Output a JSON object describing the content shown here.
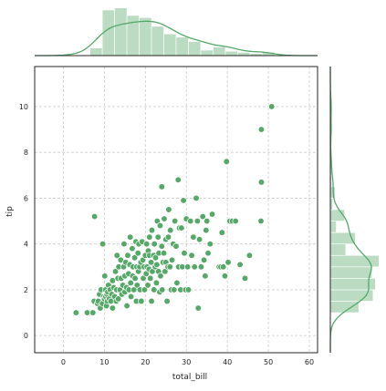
{
  "chart_data": {
    "type": "scatter",
    "kind": "jointplot",
    "xlabel": "total_bill",
    "ylabel": "tip",
    "xlim": [
      -7,
      62
    ],
    "ylim": [
      -0.75,
      11.75
    ],
    "x_ticks": [
      0,
      10,
      20,
      30,
      40,
      50,
      60
    ],
    "y_ticks": [
      0,
      2,
      4,
      6,
      8,
      10
    ],
    "grid": true,
    "color": "#55a868",
    "marginal_top": {
      "type": "histogram+kde",
      "bin_edges": [
        6.5,
        9.5,
        12.5,
        15.5,
        18.5,
        21.5,
        24.5,
        27.5,
        30.5,
        33.5,
        36.5,
        39.5,
        42.5,
        45.5,
        48.5,
        51.5
      ],
      "counts": [
        7,
        42,
        44,
        37,
        35,
        27,
        20,
        17,
        13,
        5,
        8,
        4,
        3,
        2,
        3
      ]
    },
    "marginal_right": {
      "type": "histogram+kde",
      "bin_edges": [
        1.0,
        1.5,
        2.0,
        2.5,
        3.0,
        3.5,
        4.0,
        4.5,
        5.0,
        5.5,
        6.0,
        6.5,
        7.0,
        7.5,
        8.0,
        8.5,
        9.0,
        9.5,
        10.0
      ],
      "counts": [
        24,
        36,
        38,
        35,
        41,
        13,
        21,
        5,
        12,
        2,
        4,
        1,
        1,
        0,
        0,
        0,
        1,
        1
      ]
    },
    "points": [
      [
        3.1,
        1.0
      ],
      [
        5.8,
        1.0
      ],
      [
        7.2,
        1.0
      ],
      [
        7.5,
        1.5
      ],
      [
        7.6,
        5.2
      ],
      [
        8.3,
        1.4
      ],
      [
        8.5,
        1.5
      ],
      [
        8.8,
        1.8
      ],
      [
        9.0,
        1.2
      ],
      [
        9.2,
        2.0
      ],
      [
        9.5,
        1.4
      ],
      [
        9.6,
        4.0
      ],
      [
        9.8,
        1.7
      ],
      [
        10.0,
        1.6
      ],
      [
        10.1,
        2.6
      ],
      [
        10.3,
        1.7
      ],
      [
        10.3,
        2.0
      ],
      [
        10.5,
        1.3
      ],
      [
        10.6,
        1.8
      ],
      [
        10.7,
        1.5
      ],
      [
        10.8,
        1.9
      ],
      [
        11.0,
        2.2
      ],
      [
        11.2,
        1.6
      ],
      [
        11.4,
        2.0
      ],
      [
        11.6,
        1.5
      ],
      [
        11.8,
        1.8
      ],
      [
        12.0,
        2.4
      ],
      [
        12.0,
        1.2
      ],
      [
        12.3,
        2.1
      ],
      [
        12.5,
        1.7
      ],
      [
        12.7,
        2.8
      ],
      [
        12.9,
        1.5
      ],
      [
        13.0,
        2.0
      ],
      [
        13.1,
        3.5
      ],
      [
        13.3,
        2.5
      ],
      [
        13.4,
        1.6
      ],
      [
        13.5,
        3.0
      ],
      [
        13.8,
        2.0
      ],
      [
        14.0,
        3.3
      ],
      [
        14.1,
        2.5
      ],
      [
        14.3,
        1.8
      ],
      [
        14.5,
        2.2
      ],
      [
        14.7,
        3.0
      ],
      [
        14.8,
        4.0
      ],
      [
        15.0,
        1.9
      ],
      [
        15.0,
        2.6
      ],
      [
        15.2,
        3.2
      ],
      [
        15.4,
        2.1
      ],
      [
        15.5,
        1.3
      ],
      [
        15.7,
        3.5
      ],
      [
        15.9,
        2.7
      ],
      [
        16.0,
        2.0
      ],
      [
        16.2,
        3.1
      ],
      [
        16.3,
        4.3
      ],
      [
        16.4,
        2.3
      ],
      [
        16.5,
        1.7
      ],
      [
        16.8,
        3.8
      ],
      [
        16.9,
        2.6
      ],
      [
        17.0,
        3.0
      ],
      [
        17.2,
        2.0
      ],
      [
        17.4,
        3.4
      ],
      [
        17.5,
        2.5
      ],
      [
        17.7,
        4.1
      ],
      [
        17.8,
        1.5
      ],
      [
        17.9,
        3.0
      ],
      [
        18.0,
        2.2
      ],
      [
        18.2,
        3.6
      ],
      [
        18.3,
        2.8
      ],
      [
        18.4,
        4.0
      ],
      [
        18.6,
        3.0
      ],
      [
        18.7,
        2.0
      ],
      [
        18.9,
        3.2
      ],
      [
        19.0,
        1.5
      ],
      [
        19.2,
        4.1
      ],
      [
        19.4,
        3.3
      ],
      [
        19.5,
        2.5
      ],
      [
        19.7,
        3.0
      ],
      [
        19.8,
        2.0
      ],
      [
        20.0,
        3.5
      ],
      [
        20.2,
        2.7
      ],
      [
        20.3,
        4.0
      ],
      [
        20.4,
        3.0
      ],
      [
        20.6,
        2.2
      ],
      [
        20.7,
        3.7
      ],
      [
        20.9,
        2.9
      ],
      [
        21.0,
        3.5
      ],
      [
        21.0,
        4.3
      ],
      [
        21.2,
        2.5
      ],
      [
        21.4,
        3.2
      ],
      [
        21.5,
        1.5
      ],
      [
        21.6,
        4.6
      ],
      [
        21.7,
        2.8
      ],
      [
        22.0,
        3.5
      ],
      [
        22.1,
        2.0
      ],
      [
        22.2,
        4.0
      ],
      [
        22.4,
        3.0
      ],
      [
        22.5,
        3.4
      ],
      [
        22.7,
        2.3
      ],
      [
        22.8,
        3.1
      ],
      [
        22.9,
        5.0
      ],
      [
        23.1,
        4.3
      ],
      [
        23.2,
        2.8
      ],
      [
        23.3,
        3.6
      ],
      [
        23.5,
        1.9
      ],
      [
        23.6,
        4.8
      ],
      [
        23.7,
        2.6
      ],
      [
        24.0,
        3.9
      ],
      [
        24.0,
        6.5
      ],
      [
        24.1,
        2.0
      ],
      [
        24.3,
        3.2
      ],
      [
        24.5,
        3.6
      ],
      [
        24.6,
        5.1
      ],
      [
        24.8,
        2.8
      ],
      [
        25.0,
        4.2
      ],
      [
        25.0,
        3.2
      ],
      [
        25.3,
        1.5
      ],
      [
        25.5,
        3.0
      ],
      [
        25.6,
        4.3
      ],
      [
        25.7,
        5.5
      ],
      [
        26.0,
        3.0
      ],
      [
        26.1,
        4.6
      ],
      [
        26.3,
        2.0
      ],
      [
        26.5,
        3.3
      ],
      [
        26.8,
        4.0
      ],
      [
        27.0,
        2.0
      ],
      [
        27.2,
        5.0
      ],
      [
        27.5,
        3.9
      ],
      [
        27.7,
        2.3
      ],
      [
        28.0,
        6.8
      ],
      [
        28.1,
        3.0
      ],
      [
        28.3,
        4.7
      ],
      [
        28.6,
        2.0
      ],
      [
        28.8,
        4.7
      ],
      [
        29.0,
        3.0
      ],
      [
        29.3,
        5.9
      ],
      [
        29.5,
        3.6
      ],
      [
        29.8,
        2.0
      ],
      [
        30.0,
        5.1
      ],
      [
        30.3,
        3.0
      ],
      [
        30.5,
        2.0
      ],
      [
        31.0,
        5.0
      ],
      [
        31.3,
        3.5
      ],
      [
        31.7,
        4.3
      ],
      [
        32.0,
        3.0
      ],
      [
        32.4,
        6.0
      ],
      [
        32.7,
        5.0
      ],
      [
        32.9,
        1.2
      ],
      [
        33.2,
        4.2
      ],
      [
        33.6,
        3.0
      ],
      [
        34.0,
        5.2
      ],
      [
        34.3,
        3.3
      ],
      [
        34.6,
        2.6
      ],
      [
        34.8,
        4.6
      ],
      [
        35.0,
        5.0
      ],
      [
        35.3,
        3.6
      ],
      [
        35.8,
        4.0
      ],
      [
        36.3,
        5.3
      ],
      [
        38.0,
        3.0
      ],
      [
        38.4,
        3.0
      ],
      [
        38.7,
        4.5
      ],
      [
        39.0,
        3.0
      ],
      [
        39.4,
        2.6
      ],
      [
        39.8,
        7.6
      ],
      [
        40.2,
        3.2
      ],
      [
        40.6,
        5.0
      ],
      [
        41.2,
        5.0
      ],
      [
        42.0,
        5.0
      ],
      [
        43.1,
        3.1
      ],
      [
        44.3,
        2.5
      ],
      [
        45.4,
        3.5
      ],
      [
        48.2,
        5.0
      ],
      [
        48.3,
        9.0
      ],
      [
        48.3,
        6.7
      ],
      [
        50.8,
        10.0
      ]
    ]
  }
}
